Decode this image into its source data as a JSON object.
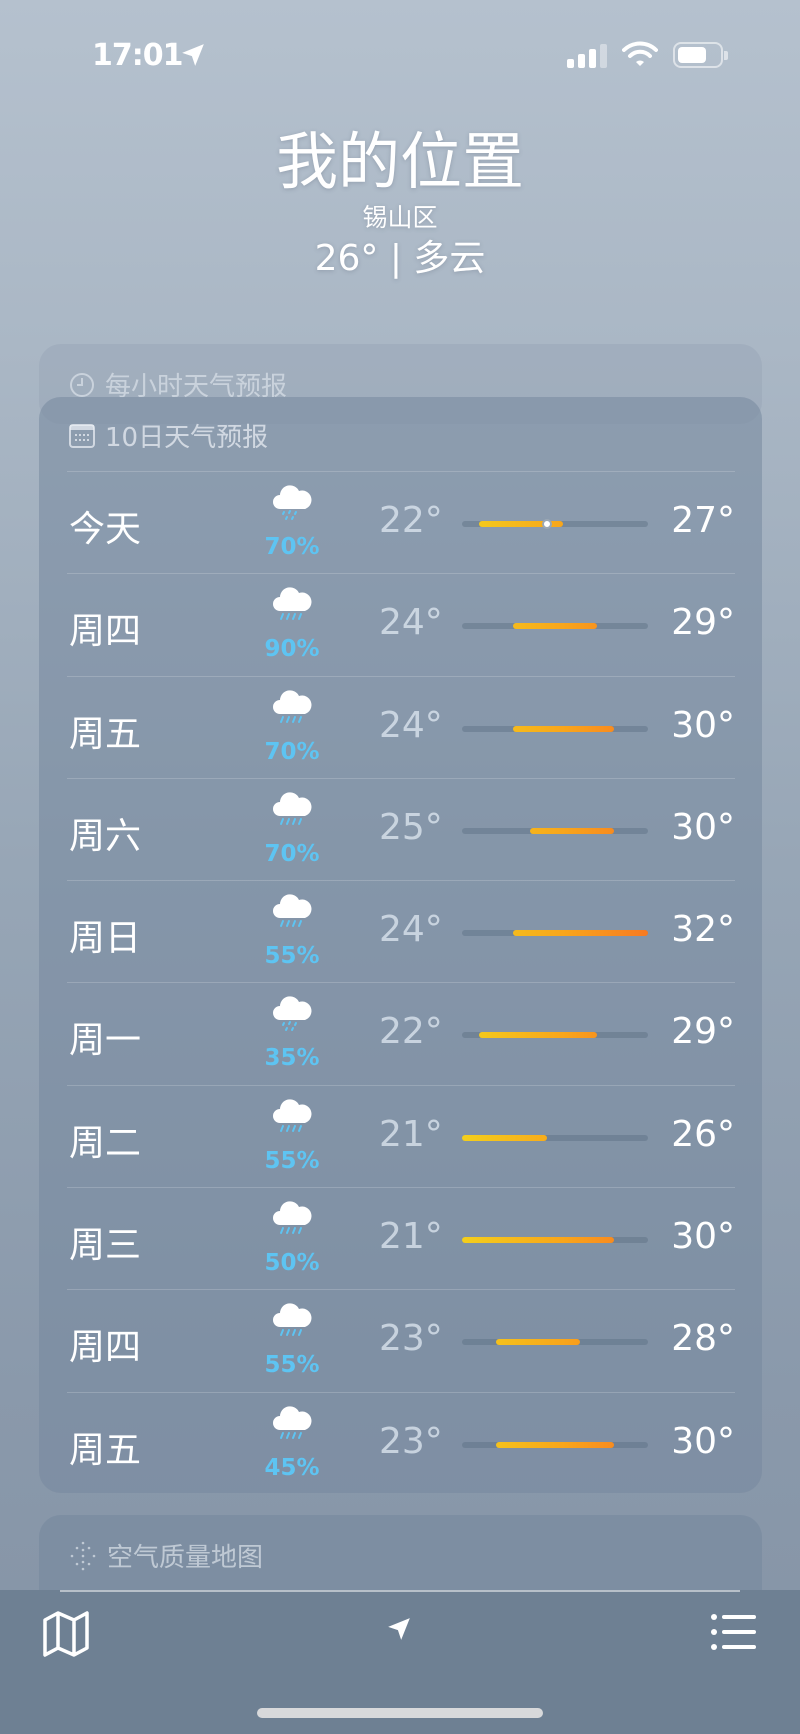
{
  "status_bar": {
    "time": "17:01"
  },
  "header": {
    "title": "我的位置",
    "subtitle": "锡山区",
    "condition": "26° | 多云"
  },
  "hourly": {
    "title": "每小时天气预报",
    "icon": "clock-icon"
  },
  "ten_day": {
    "title": "10日天气预报",
    "icon": "calendar-icon",
    "range": [
      21,
      32
    ],
    "current_temp": 26,
    "colors": {
      "precip": "#5ec4f2",
      "bar_low": "#f3cf1c",
      "bar_high": "#f77a22"
    },
    "days": [
      {
        "day": "今天",
        "precip": "70%",
        "low": "22°",
        "high": "27°",
        "low_v": 22,
        "high_v": 27,
        "icon": "cloud-drizzle-icon"
      },
      {
        "day": "周四",
        "precip": "90%",
        "low": "24°",
        "high": "29°",
        "low_v": 24,
        "high_v": 29,
        "icon": "cloud-rain-icon"
      },
      {
        "day": "周五",
        "precip": "70%",
        "low": "24°",
        "high": "30°",
        "low_v": 24,
        "high_v": 30,
        "icon": "cloud-rain-icon"
      },
      {
        "day": "周六",
        "precip": "70%",
        "low": "25°",
        "high": "30°",
        "low_v": 25,
        "high_v": 30,
        "icon": "cloud-rain-icon"
      },
      {
        "day": "周日",
        "precip": "55%",
        "low": "24°",
        "high": "32°",
        "low_v": 24,
        "high_v": 32,
        "icon": "cloud-rain-icon"
      },
      {
        "day": "周一",
        "precip": "35%",
        "low": "22°",
        "high": "29°",
        "low_v": 22,
        "high_v": 29,
        "icon": "cloud-drizzle-icon"
      },
      {
        "day": "周二",
        "precip": "55%",
        "low": "21°",
        "high": "26°",
        "low_v": 21,
        "high_v": 26,
        "icon": "cloud-rain-icon"
      },
      {
        "day": "周三",
        "precip": "50%",
        "low": "21°",
        "high": "30°",
        "low_v": 21,
        "high_v": 30,
        "icon": "cloud-rain-icon"
      },
      {
        "day": "周四",
        "precip": "55%",
        "low": "23°",
        "high": "28°",
        "low_v": 23,
        "high_v": 28,
        "icon": "cloud-rain-icon"
      },
      {
        "day": "周五",
        "precip": "45%",
        "low": "23°",
        "high": "30°",
        "low_v": 23,
        "high_v": 30,
        "icon": "cloud-rain-icon"
      }
    ]
  },
  "air_quality": {
    "title": "空气质量地图",
    "icon": "air-quality-icon"
  },
  "toolbar": {
    "map": "map-icon",
    "location": "location-arrow-icon",
    "list": "list-icon"
  }
}
